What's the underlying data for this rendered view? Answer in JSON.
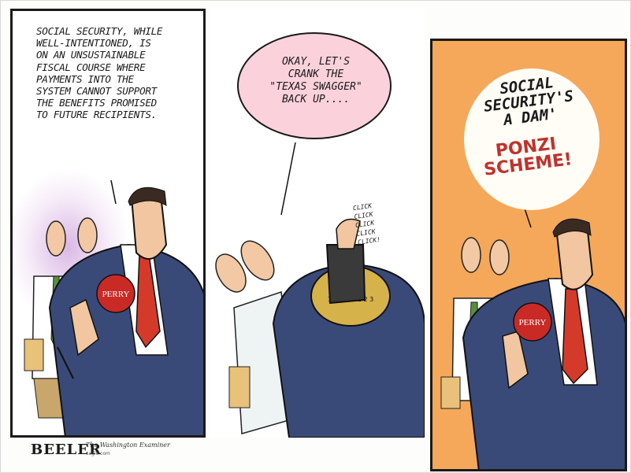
{
  "panel1": {
    "caption": "SOCIAL SECURITY, WHILE\nWELL-INTENTIONED, IS\nON AN UNSUSTAINABLE\nFISCAL COURSE WHERE\nPAYMENTS INTO THE\nSYSTEM CANNOT SUPPORT\nTHE BENEFITS PROMISED\nTO FUTURE RECIPIENTS.",
    "button_text": "PERRY"
  },
  "panel2": {
    "speech": "OKAY, LET'S\nCRANK THE\n\"TEXAS SWAGGER\"\nBACK UP....",
    "sound": "CLICK\nCLICK\nCLICK\nCLICK\nCLICK!",
    "dial_text": "10 11 12 1 2 3"
  },
  "panel3": {
    "speech_black": "SOCIAL\nSECURITY'S\nA DAM'",
    "speech_red": "PONZI\nSCHEME!",
    "button_text": "PERRY"
  },
  "signature": "BEELER",
  "credit": "The Washington Examiner",
  "credit_small": "cagle.com",
  "colors": {
    "panel3_bg": "#f5a859",
    "bubble2": "#fbd2dc",
    "red": "#c0322d",
    "suit": "#3a4a78"
  }
}
